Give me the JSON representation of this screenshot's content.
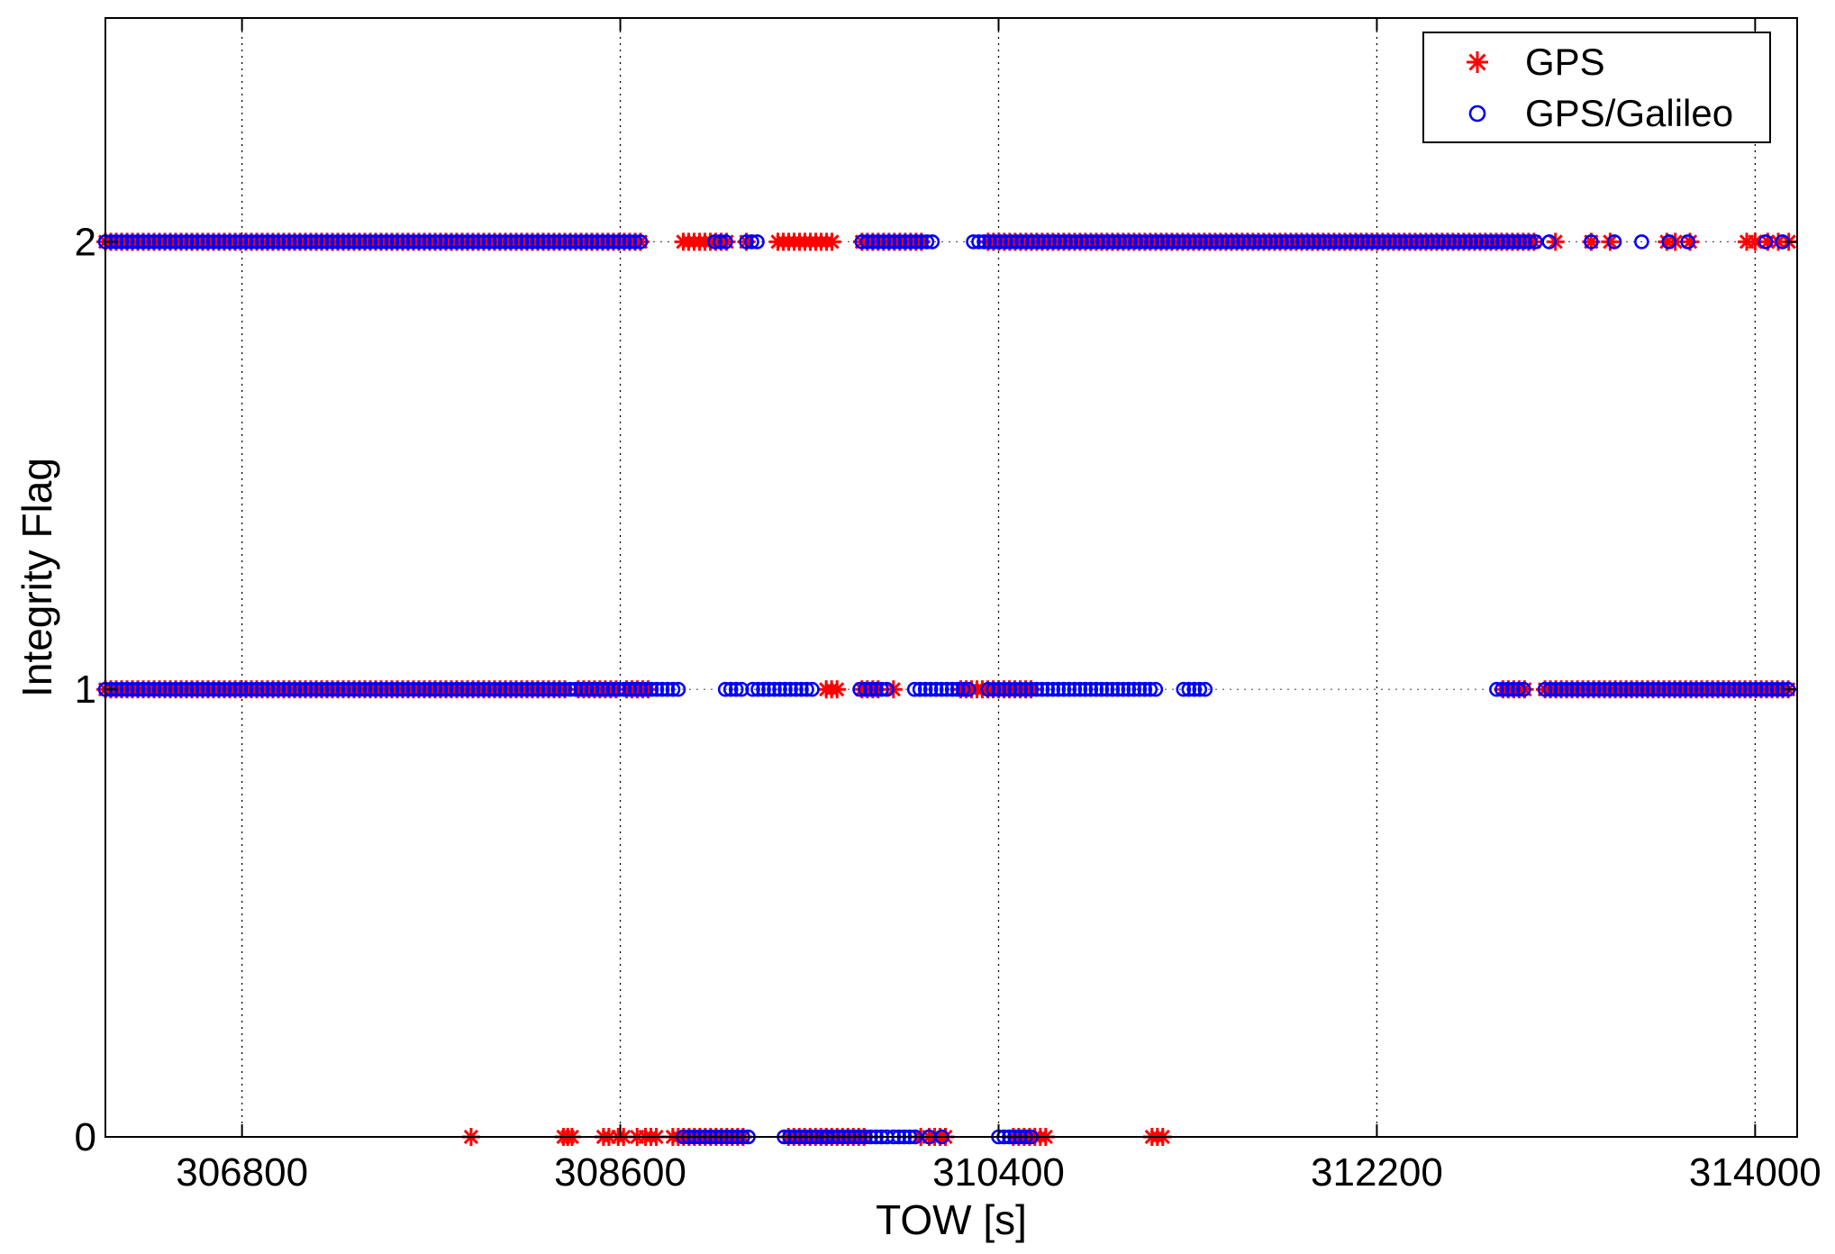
{
  "chart_data": {
    "type": "scatter",
    "title": "",
    "xlabel": "TOW [s]",
    "ylabel": "Integrity Flag",
    "xlim": [
      306150,
      314200
    ],
    "ylim": [
      0,
      2.5
    ],
    "xticks": [
      306800,
      308600,
      310400,
      312200,
      314000
    ],
    "xtick_labels": [
      "306800",
      "308600",
      "310400",
      "312200",
      "314000"
    ],
    "yticks": [
      0,
      1,
      2
    ],
    "ytick_labels": [
      "0",
      "1",
      "2"
    ],
    "grid": true,
    "legend_position": "top-right",
    "series": [
      {
        "name": "GPS",
        "marker": "asterisk",
        "color": "#ff0000",
        "dense_segments": [
          {
            "y": 2,
            "x": [
              [
                306150,
                308720
              ],
              [
                308900,
                309120
              ],
              [
                309350,
                309630
              ],
              [
                309750,
                310050
              ],
              [
                310350,
                312960
              ]
            ]
          },
          {
            "y": 1,
            "x": [
              [
                306150,
                308340
              ],
              [
                308400,
                308600
              ],
              [
                308630,
                308750
              ],
              [
                309580,
                309640
              ],
              [
                309750,
                309850
              ],
              [
                310220,
                310580
              ],
              [
                312800,
                312920
              ],
              [
                313000,
                314180
              ]
            ]
          },
          {
            "y": 0,
            "x": [
              [
                308520,
                308560
              ],
              [
                308590,
                308640
              ],
              [
                308680,
                308700
              ],
              [
                308720,
                308780
              ],
              [
                308850,
                309200
              ],
              [
                309400,
                309770
              ],
              [
                310070,
                310170
              ],
              [
                310470,
                310630
              ],
              [
                311130,
                311200
              ]
            ]
          }
        ],
        "points": [
          {
            "x": 309200,
            "y": 2
          },
          {
            "x": 313050,
            "y": 2
          },
          {
            "x": 313220,
            "y": 2
          },
          {
            "x": 313310,
            "y": 2
          },
          {
            "x": 313580,
            "y": 2
          },
          {
            "x": 313620,
            "y": 2
          },
          {
            "x": 313690,
            "y": 2
          },
          {
            "x": 313960,
            "y": 2
          },
          {
            "x": 314000,
            "y": 2
          },
          {
            "x": 314060,
            "y": 2
          },
          {
            "x": 314110,
            "y": 2
          },
          {
            "x": 314160,
            "y": 2
          },
          {
            "x": 309900,
            "y": 1
          },
          {
            "x": 307890,
            "y": 0
          },
          {
            "x": 308330,
            "y": 0
          },
          {
            "x": 308350,
            "y": 0
          },
          {
            "x": 308370,
            "y": 0
          },
          {
            "x": 309580,
            "y": 0
          },
          {
            "x": 310030,
            "y": 0
          }
        ]
      },
      {
        "name": "GPS/Galileo",
        "marker": "circle",
        "color": "#0000ff",
        "dense_segments": [
          {
            "y": 2,
            "x": [
              [
                306150,
                308720
              ],
              [
                309050,
                309120
              ],
              [
                309200,
                309270
              ],
              [
                309750,
                310100
              ],
              [
                310280,
                312960
              ]
            ]
          },
          {
            "y": 1,
            "x": [
              [
                306150,
                308890
              ],
              [
                309100,
                309200
              ],
              [
                309230,
                309520
              ],
              [
                309740,
                309880
              ],
              [
                310000,
                310280
              ],
              [
                310350,
                311150
              ],
              [
                311280,
                311400
              ],
              [
                312770,
                312920
              ],
              [
                313000,
                314180
              ]
            ]
          },
          {
            "y": 0,
            "x": [
              [
                308900,
                309210
              ],
              [
                309380,
                309880
              ],
              [
                309900,
                310020
              ],
              [
                310400,
                310580
              ]
            ]
          }
        ],
        "points": [
          {
            "x": 313020,
            "y": 2
          },
          {
            "x": 313220,
            "y": 2
          },
          {
            "x": 313330,
            "y": 2
          },
          {
            "x": 313460,
            "y": 2
          },
          {
            "x": 313590,
            "y": 2
          },
          {
            "x": 313680,
            "y": 2
          },
          {
            "x": 314050,
            "y": 2
          },
          {
            "x": 314130,
            "y": 2
          },
          {
            "x": 309580,
            "y": 0
          },
          {
            "x": 310070,
            "y": 0
          },
          {
            "x": 310130,
            "y": 0
          }
        ]
      }
    ]
  }
}
